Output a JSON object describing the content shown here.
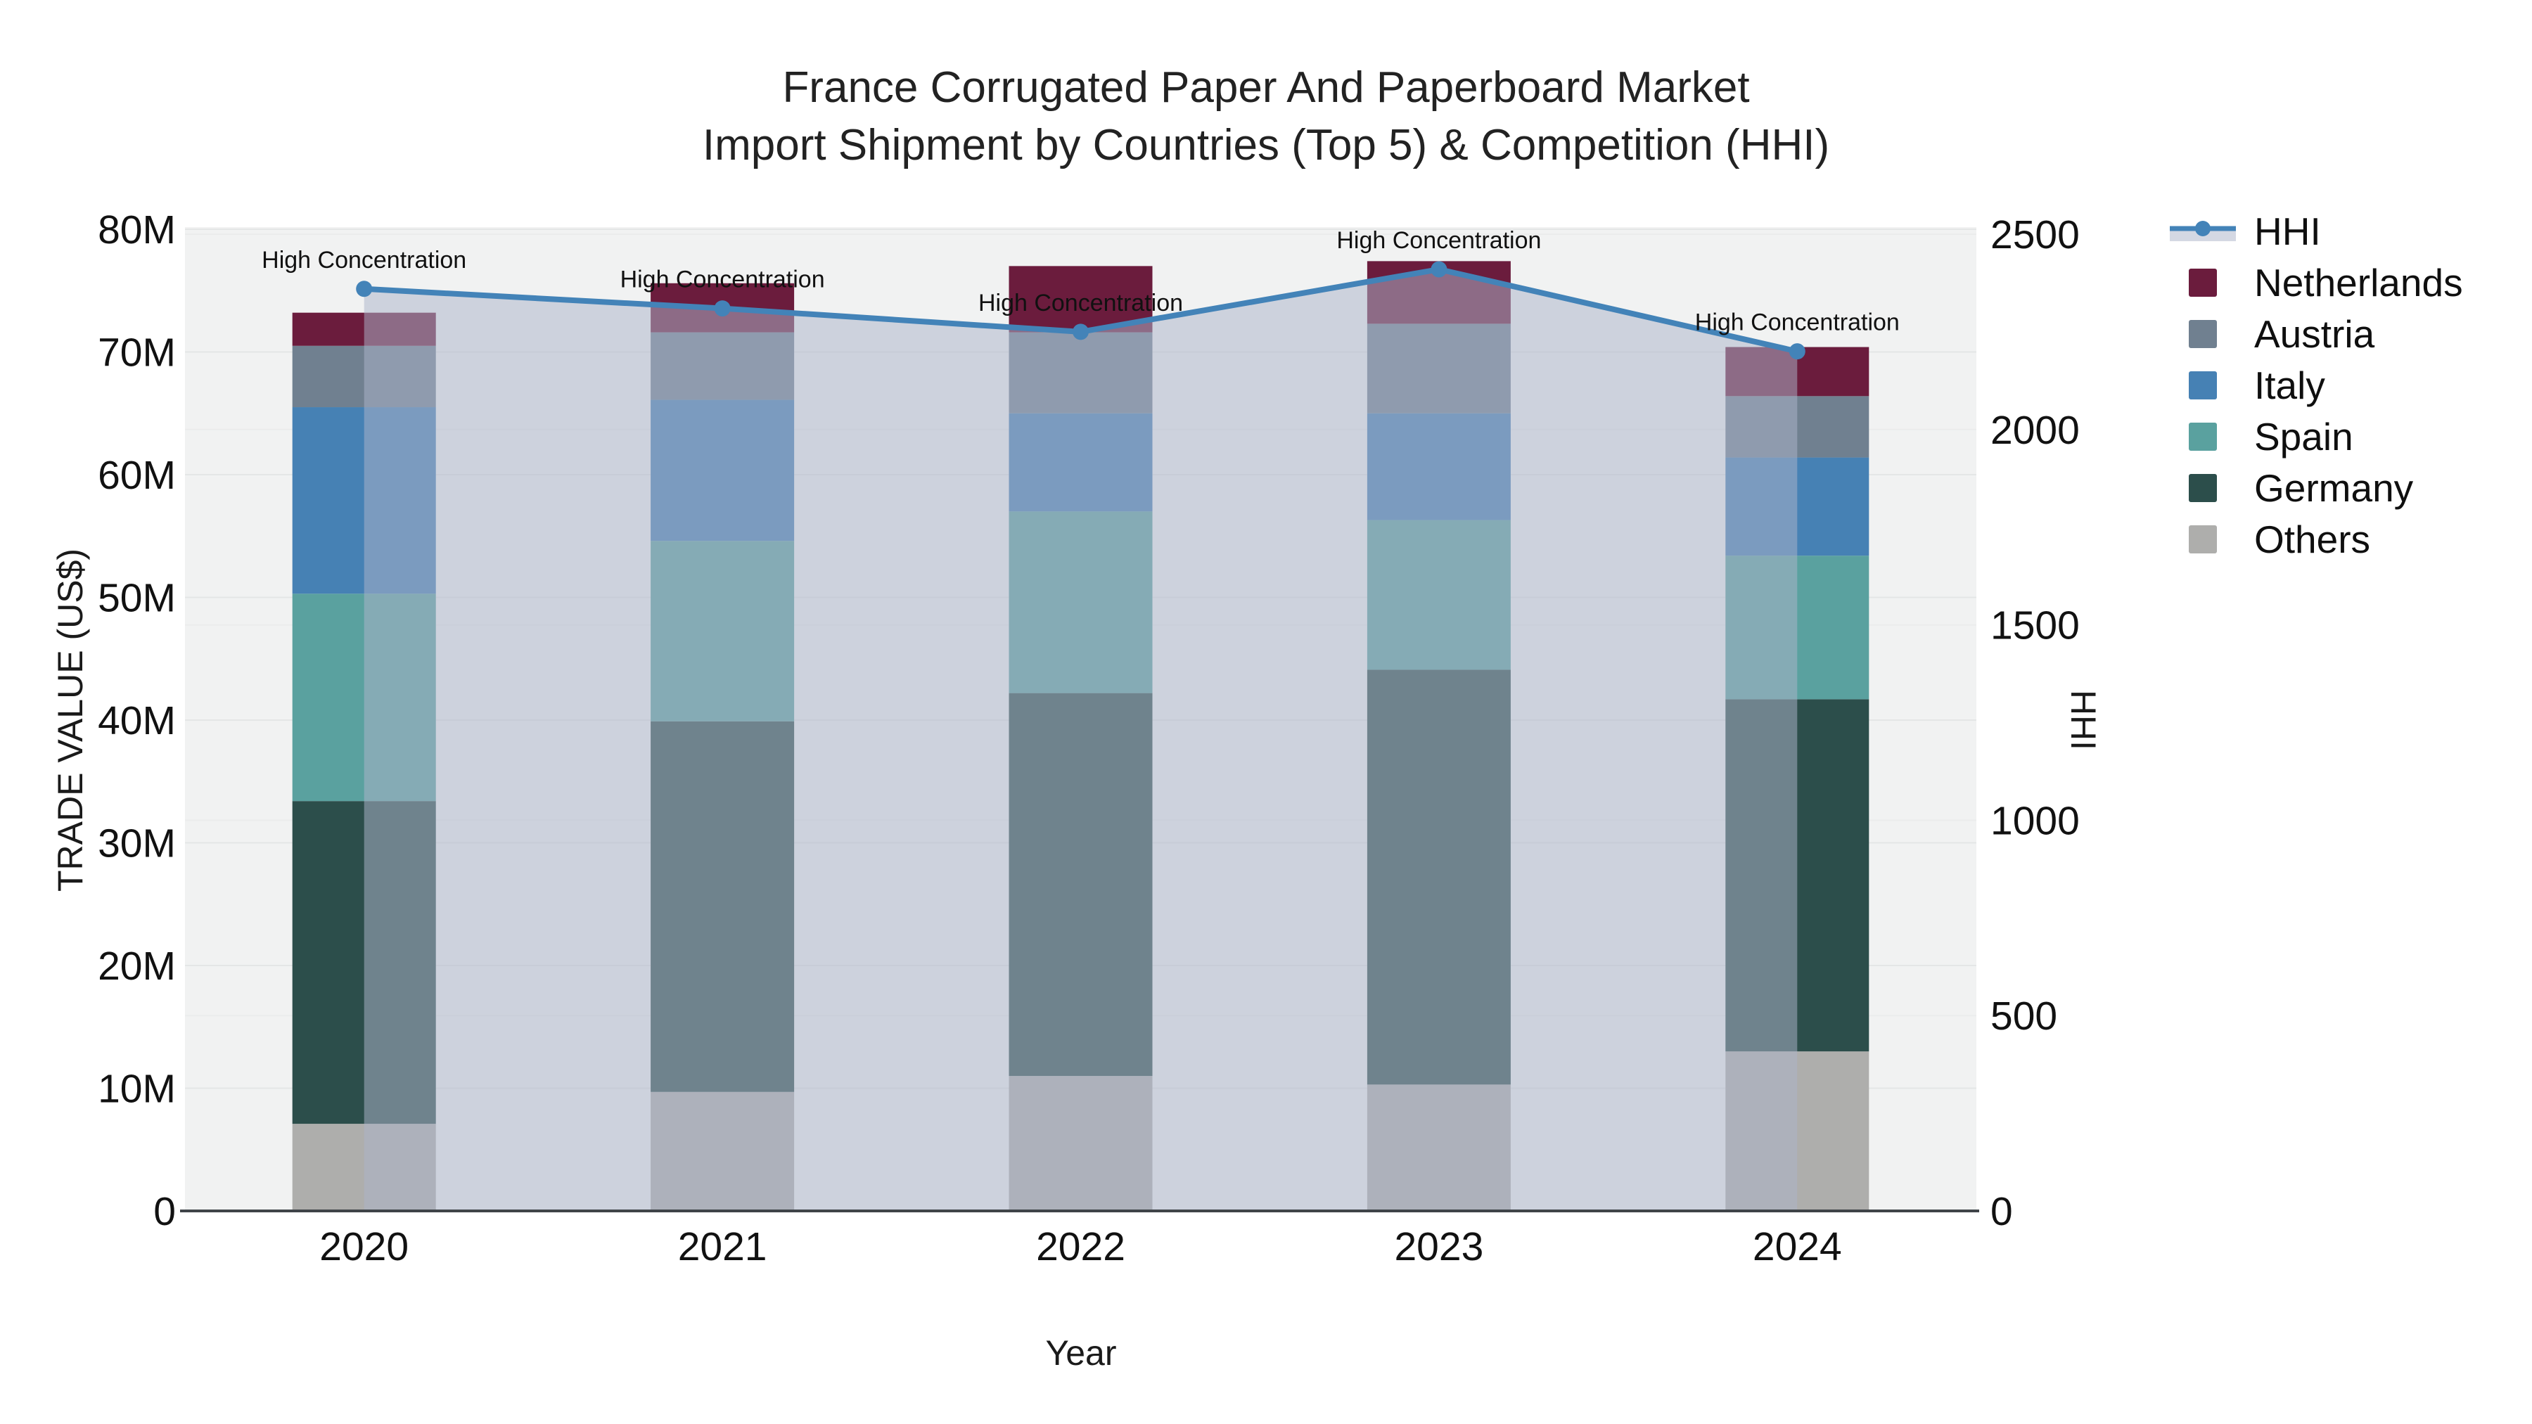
{
  "page": {
    "title_line1": "France Corrugated Paper And Paperboard Market",
    "title_line2": "Import Shipment by Countries (Top 5) & Competition (HHI)"
  },
  "chart_data": {
    "type": "combo: stacked bars (trade value, left axis) + line with area fill (HHI, right axis)",
    "categories": [
      "2020",
      "2021",
      "2022",
      "2023",
      "2024"
    ],
    "stacked_series": [
      {
        "name": "Others",
        "color": "#aeaeac",
        "values": [
          7.1,
          9.7,
          11.0,
          10.3,
          13.0
        ]
      },
      {
        "name": "Germany",
        "color": "#2c4e4b",
        "values": [
          26.3,
          30.2,
          31.2,
          33.8,
          28.7
        ]
      },
      {
        "name": "Spain",
        "color": "#5aa19f",
        "values": [
          16.9,
          14.7,
          14.8,
          12.2,
          11.7
        ]
      },
      {
        "name": "Italy",
        "color": "#4681b4",
        "values": [
          15.2,
          11.5,
          8.0,
          8.7,
          8.0
        ]
      },
      {
        "name": "Austria",
        "color": "#708090",
        "values": [
          5.0,
          5.5,
          6.6,
          7.3,
          5.0
        ]
      },
      {
        "name": "Netherlands",
        "color": "#6b1c3d",
        "values": [
          2.7,
          4.0,
          5.4,
          5.1,
          4.0
        ]
      }
    ],
    "stacked_totals": [
      73.2,
      75.6,
      77.0,
      77.4,
      70.4
    ],
    "line_series": {
      "name": "HHI",
      "values": [
        2360,
        2310,
        2250,
        2410,
        2200
      ],
      "color": "#4383b8",
      "area_fill_color": "rgba(172,181,202,0.52)",
      "axis": "right"
    },
    "annotation_label": "High Concentration",
    "x_axis": {
      "title": "Year"
    },
    "left_axis": {
      "title": "TRADE VALUE (US$)",
      "min": 0,
      "max": 80,
      "tick_step": 10,
      "tick_labels": [
        "0",
        "10M",
        "20M",
        "30M",
        "40M",
        "50M",
        "60M",
        "70M",
        "80M"
      ]
    },
    "right_axis": {
      "title": "HHI",
      "min": 0,
      "max": 2500,
      "tick_step": 500,
      "tick_labels": [
        "0",
        "500",
        "1000",
        "1500",
        "2000",
        "2500"
      ]
    },
    "legend_position": "right",
    "grid": true
  },
  "colors": {
    "plot_bg": "#f1f2f2",
    "grid_left": "#e4e6e6",
    "grid_right": "#ebecec",
    "axis_line": "#3f4448",
    "tick_text": "#111111",
    "annotation_text": "#111111"
  }
}
